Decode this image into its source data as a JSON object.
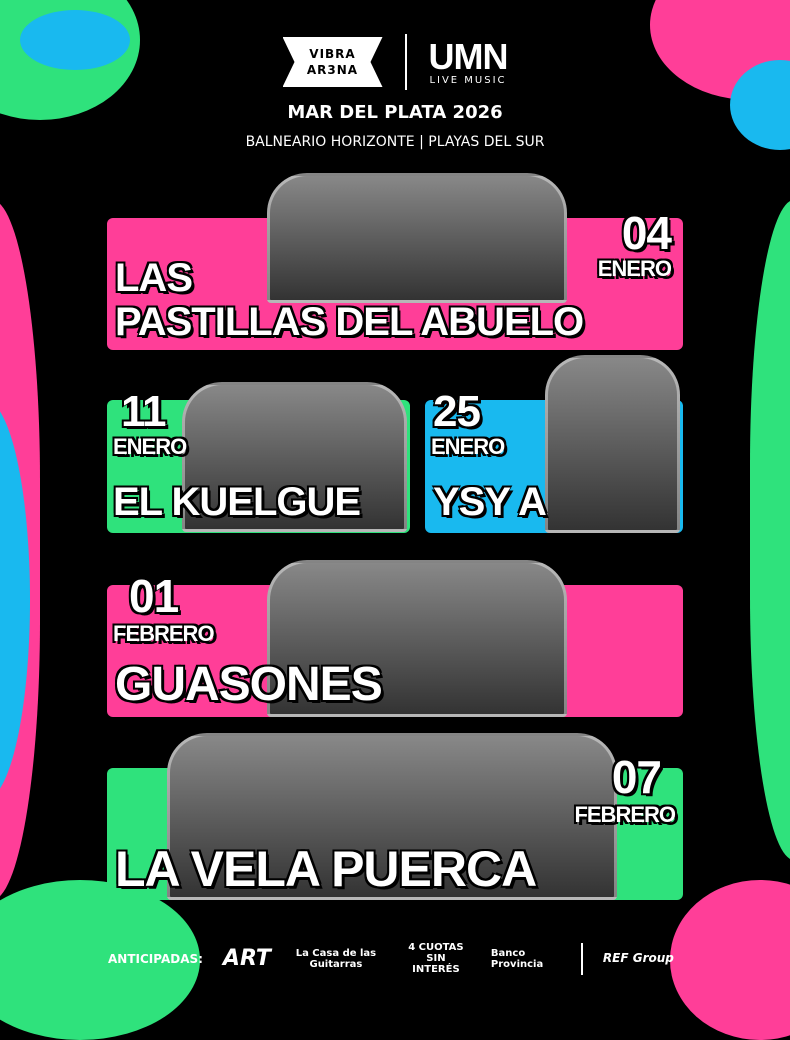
{
  "header": {
    "logo_left": [
      "VIBRA",
      "AR3NA"
    ],
    "logo_right": "UMN",
    "logo_right_sub": "LIVE MUSIC",
    "title": "MAR DEL PLATA 2026",
    "subtitle": "BALNEARIO HORIZONTE  |  PLAYAS DEL SUR"
  },
  "colors": {
    "pink": "#ff3e98",
    "green": "#2fe27c",
    "cyan": "#19b9ef",
    "background": "#000000"
  },
  "shows": [
    {
      "day": "04",
      "month": "ENERO",
      "artist_lines": [
        "LAS",
        "PASTILLAS DEL ABUELO"
      ]
    },
    {
      "day": "11",
      "month": "ENERO",
      "artist": "EL KUELGUE"
    },
    {
      "day": "25",
      "month": "ENERO",
      "artist": "YSY A"
    },
    {
      "day": "01",
      "month": "FEBRERO",
      "artist": "GUASONES"
    },
    {
      "day": "07",
      "month": "FEBRERO",
      "artist": "LA VELA PUERCA"
    }
  ],
  "footer": {
    "label": "ANTICIPADAS:",
    "sponsors": [
      "ART",
      "La Casa de las Guitarras",
      "4 CUOTAS SIN INTERÉS",
      "Banco Provincia",
      "REF Group"
    ]
  }
}
